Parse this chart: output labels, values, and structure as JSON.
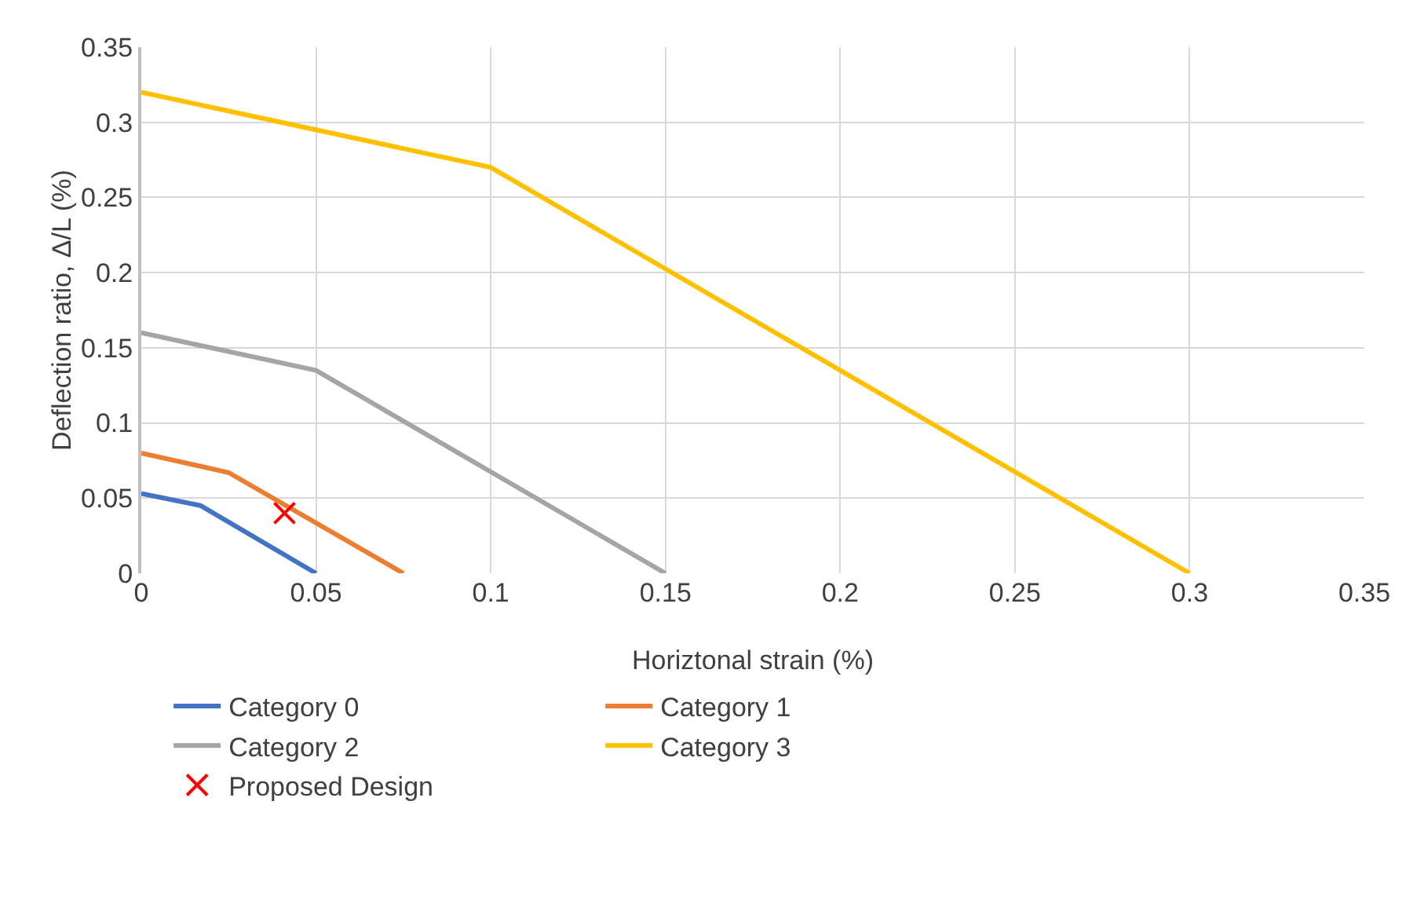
{
  "chart_data": {
    "type": "line",
    "xlabel": "Horiztonal strain (%)",
    "ylabel": "Deflection ratio, Δ/L (%)",
    "xlim": [
      0,
      0.35
    ],
    "xticks": [
      0,
      0.05,
      0.1,
      0.15,
      0.2,
      0.25,
      0.3,
      0.35
    ],
    "ylim": [
      0,
      0.35
    ],
    "yticks": [
      0,
      0.05,
      0.1,
      0.15,
      0.2,
      0.25,
      0.3,
      0.35
    ],
    "grid": true,
    "legend": "bottom",
    "marker": "none",
    "line_style": "solid",
    "series": [
      {
        "name": "Category 0",
        "color": "#4472c4",
        "x": [
          0,
          0.017,
          0.05
        ],
        "values": [
          0.053,
          0.045,
          0
        ]
      },
      {
        "name": "Category 1",
        "color": "#ed7d31",
        "x": [
          0,
          0.025,
          0.075
        ],
        "values": [
          0.08,
          0.067,
          0
        ]
      },
      {
        "name": "Category 2",
        "color": "#a5a5a5",
        "x": [
          0,
          0.05,
          0.15
        ],
        "values": [
          0.16,
          0.135,
          0
        ]
      },
      {
        "name": "Category 3",
        "color": "#ffc000",
        "x": [
          0,
          0.1,
          0.3
        ],
        "values": [
          0.32,
          0.27,
          0
        ]
      },
      {
        "name": "Proposed Design",
        "type": "scatter",
        "marker": "cross",
        "color": "#ff0000",
        "x": [
          0.041
        ],
        "values": [
          0.04
        ]
      }
    ]
  }
}
